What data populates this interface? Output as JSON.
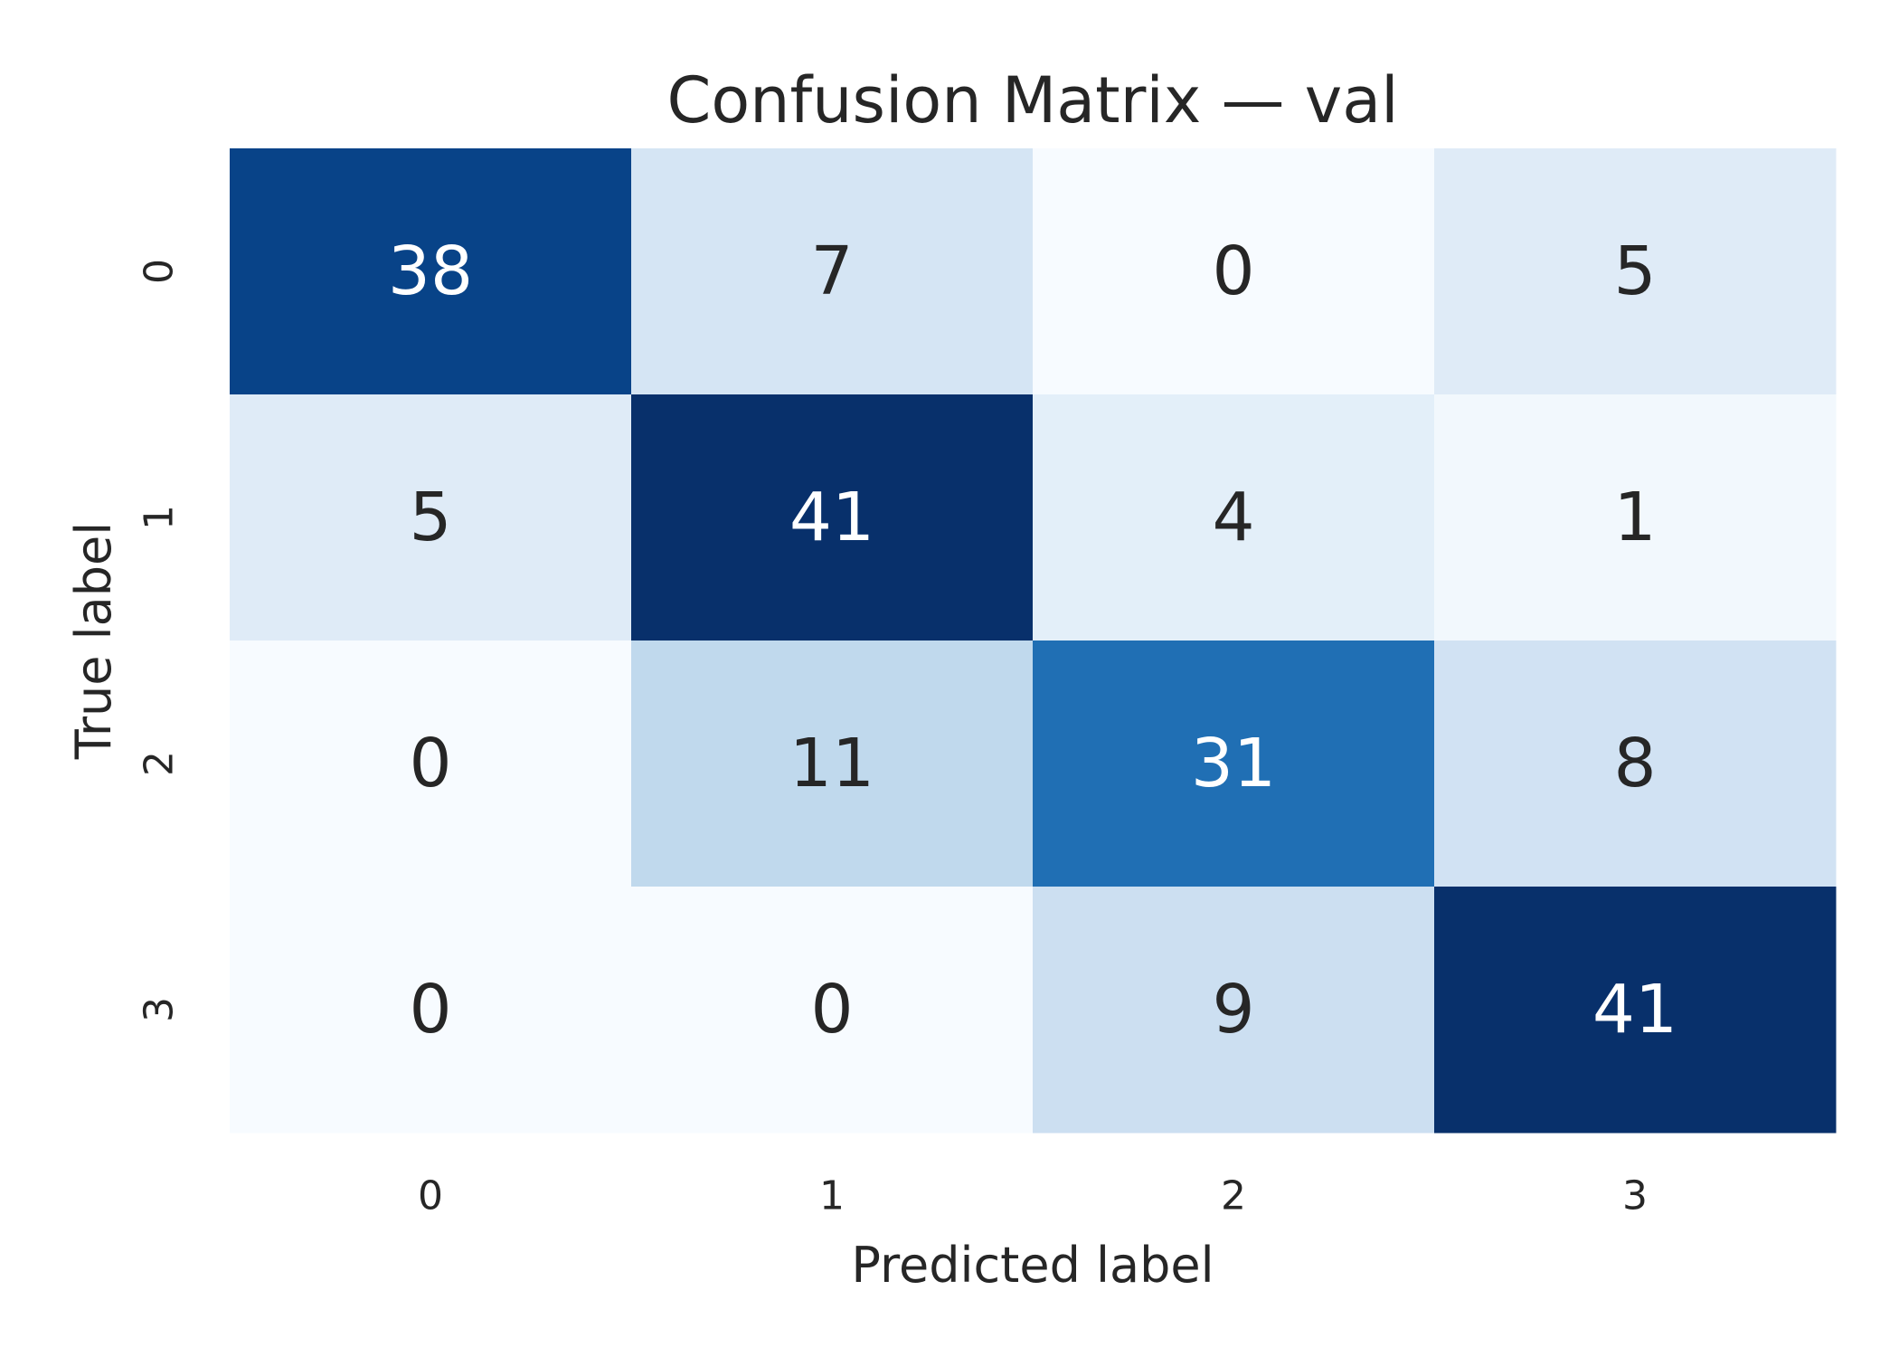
{
  "chart_data": {
    "type": "heatmap",
    "title": "Confusion Matrix — val",
    "xlabel": "Predicted label",
    "ylabel": "True label",
    "x_categories": [
      "0",
      "1",
      "2",
      "3"
    ],
    "y_categories": [
      "0",
      "1",
      "2",
      "3"
    ],
    "values": [
      [
        38,
        7,
        0,
        5
      ],
      [
        5,
        41,
        4,
        1
      ],
      [
        0,
        11,
        31,
        8
      ],
      [
        0,
        0,
        9,
        41
      ]
    ],
    "colormap": "Blues",
    "color_range": [
      0,
      41
    ],
    "colors": {
      "low": "#f7fbff",
      "high": "#08306b",
      "text_dark": "#262626",
      "text_light": "#ffffff"
    },
    "colorbar": false,
    "grid": false
  }
}
